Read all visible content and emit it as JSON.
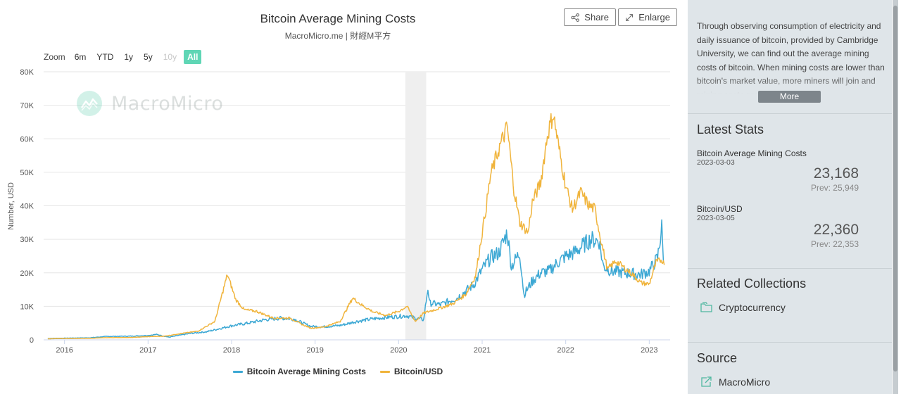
{
  "header": {
    "title": "Bitcoin Average Mining Costs",
    "subtitle": "MacroMicro.me | 財經M平方",
    "share_label": "Share",
    "enlarge_label": "Enlarge"
  },
  "zoom": {
    "label": "Zoom",
    "options": [
      {
        "label": "6m",
        "state": "normal"
      },
      {
        "label": "YTD",
        "state": "normal"
      },
      {
        "label": "1y",
        "state": "normal"
      },
      {
        "label": "5y",
        "state": "normal"
      },
      {
        "label": "10y",
        "state": "disabled"
      },
      {
        "label": "All",
        "state": "active"
      }
    ]
  },
  "watermark": {
    "text": "MacroMicro"
  },
  "chart_data": {
    "type": "line",
    "title": "Bitcoin Average Mining Costs",
    "subtitle": "MacroMicro.me | 財經M平方",
    "ylabel": "Number, USD",
    "xlabel": "",
    "xlim": [
      2015.75,
      2023.25
    ],
    "ylim": [
      0,
      80000
    ],
    "yticks": [
      0,
      10000,
      20000,
      30000,
      40000,
      50000,
      60000,
      70000,
      80000
    ],
    "ytick_labels": [
      "0",
      "10K",
      "20K",
      "30K",
      "40K",
      "50K",
      "60K",
      "70K",
      "80K"
    ],
    "xticks": [
      2016,
      2017,
      2018,
      2019,
      2020,
      2021,
      2022,
      2023
    ],
    "xtick_labels": [
      "2016",
      "2017",
      "2018",
      "2019",
      "2020",
      "2021",
      "2022",
      "2023"
    ],
    "shaded_band": [
      2020.08,
      2020.33
    ],
    "grid": "horizontal",
    "legend_position": "bottom-center",
    "series": [
      {
        "name": "Bitcoin Average Mining Costs",
        "color": "#3da8d4",
        "points": [
          [
            2015.8,
            400
          ],
          [
            2016.0,
            500
          ],
          [
            2016.3,
            600
          ],
          [
            2016.5,
            1000
          ],
          [
            2016.8,
            1100
          ],
          [
            2017.0,
            1300
          ],
          [
            2017.1,
            1600
          ],
          [
            2017.25,
            800
          ],
          [
            2017.5,
            1900
          ],
          [
            2017.7,
            2400
          ],
          [
            2017.9,
            3600
          ],
          [
            2018.0,
            4200
          ],
          [
            2018.2,
            5000
          ],
          [
            2018.4,
            6000
          ],
          [
            2018.6,
            6500
          ],
          [
            2018.75,
            6200
          ],
          [
            2018.85,
            5000
          ],
          [
            2018.95,
            4000
          ],
          [
            2019.1,
            3900
          ],
          [
            2019.3,
            4300
          ],
          [
            2019.5,
            5500
          ],
          [
            2019.7,
            6300
          ],
          [
            2019.9,
            6800
          ],
          [
            2020.0,
            7000
          ],
          [
            2020.1,
            7200
          ],
          [
            2020.2,
            6500
          ],
          [
            2020.3,
            6000
          ],
          [
            2020.35,
            15500
          ],
          [
            2020.37,
            11000
          ],
          [
            2020.5,
            10500
          ],
          [
            2020.7,
            12500
          ],
          [
            2020.9,
            16500
          ],
          [
            2021.0,
            21000
          ],
          [
            2021.1,
            24500
          ],
          [
            2021.2,
            26000
          ],
          [
            2021.3,
            32000
          ],
          [
            2021.35,
            22000
          ],
          [
            2021.45,
            26000
          ],
          [
            2021.5,
            13500
          ],
          [
            2021.6,
            17500
          ],
          [
            2021.7,
            20000
          ],
          [
            2021.8,
            20500
          ],
          [
            2021.9,
            23000
          ],
          [
            2022.0,
            25000
          ],
          [
            2022.1,
            26000
          ],
          [
            2022.2,
            28000
          ],
          [
            2022.3,
            30000
          ],
          [
            2022.4,
            29500
          ],
          [
            2022.45,
            22000
          ],
          [
            2022.55,
            20500
          ],
          [
            2022.7,
            20000
          ],
          [
            2022.9,
            19500
          ],
          [
            2023.0,
            20500
          ],
          [
            2023.1,
            24500
          ],
          [
            2023.15,
            33500
          ],
          [
            2023.17,
            23168
          ]
        ]
      },
      {
        "name": "Bitcoin/USD",
        "color": "#f0b43c",
        "points": [
          [
            2015.8,
            300
          ],
          [
            2016.0,
            400
          ],
          [
            2016.3,
            450
          ],
          [
            2016.5,
            650
          ],
          [
            2016.8,
            700
          ],
          [
            2017.0,
            950
          ],
          [
            2017.2,
            1100
          ],
          [
            2017.4,
            1900
          ],
          [
            2017.6,
            2600
          ],
          [
            2017.8,
            5500
          ],
          [
            2017.95,
            19500
          ],
          [
            2018.05,
            12000
          ],
          [
            2018.15,
            9000
          ],
          [
            2018.3,
            8500
          ],
          [
            2018.5,
            6500
          ],
          [
            2018.7,
            6500
          ],
          [
            2018.85,
            4500
          ],
          [
            2018.95,
            3500
          ],
          [
            2019.1,
            3800
          ],
          [
            2019.3,
            5500
          ],
          [
            2019.45,
            12500
          ],
          [
            2019.55,
            10500
          ],
          [
            2019.7,
            8300
          ],
          [
            2019.85,
            7300
          ],
          [
            2020.0,
            8500
          ],
          [
            2020.1,
            10000
          ],
          [
            2020.2,
            5500
          ],
          [
            2020.3,
            8000
          ],
          [
            2020.5,
            9500
          ],
          [
            2020.65,
            10800
          ],
          [
            2020.8,
            13500
          ],
          [
            2020.92,
            19000
          ],
          [
            2021.0,
            32000
          ],
          [
            2021.05,
            40000
          ],
          [
            2021.1,
            49000
          ],
          [
            2021.2,
            57000
          ],
          [
            2021.3,
            63500
          ],
          [
            2021.38,
            45000
          ],
          [
            2021.45,
            35000
          ],
          [
            2021.55,
            32000
          ],
          [
            2021.6,
            41000
          ],
          [
            2021.7,
            47000
          ],
          [
            2021.78,
            61000
          ],
          [
            2021.85,
            67500
          ],
          [
            2021.92,
            57000
          ],
          [
            2022.0,
            46000
          ],
          [
            2022.08,
            39000
          ],
          [
            2022.18,
            44000
          ],
          [
            2022.28,
            40000
          ],
          [
            2022.35,
            39000
          ],
          [
            2022.42,
            30000
          ],
          [
            2022.5,
            21000
          ],
          [
            2022.6,
            23500
          ],
          [
            2022.7,
            21500
          ],
          [
            2022.8,
            19500
          ],
          [
            2022.9,
            17000
          ],
          [
            2023.0,
            16600
          ],
          [
            2023.08,
            23000
          ],
          [
            2023.15,
            24000
          ],
          [
            2023.18,
            22360
          ]
        ]
      }
    ]
  },
  "sidebar": {
    "description": "Through observing consumption of electricity and daily issuance of bitcoin, provided by Cambridge University, we can find out the average mining costs of bitcoin. When mining costs are lower than bitcoin's market value, more miners will join and mining costs are",
    "more_label": "More",
    "latest_stats_heading": "Latest Stats",
    "stats": [
      {
        "name": "Bitcoin Average Mining Costs",
        "date": "2023-03-03",
        "value": "23,168",
        "prev": "Prev: 25,949"
      },
      {
        "name": "Bitcoin/USD",
        "date": "2023-03-05",
        "value": "22,360",
        "prev": "Prev: 22,353"
      }
    ],
    "related_heading": "Related Collections",
    "related_link": "Cryptocurrency",
    "source_heading": "Source",
    "source_link": "MacroMicro"
  }
}
